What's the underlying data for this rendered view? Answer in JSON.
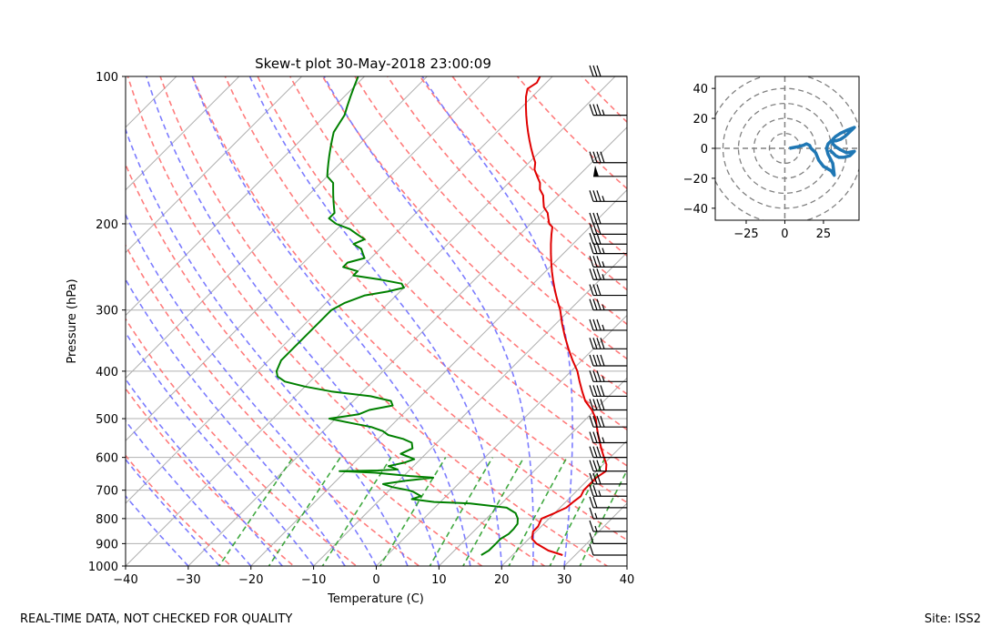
{
  "chart_data": [
    {
      "type": "skew-t",
      "title": "Skew-t plot 30-May-2018 23:00:09",
      "xlabel": "Temperature (C)",
      "ylabel": "Pressure (hPa)",
      "xlim": [
        -40,
        40
      ],
      "ylim_hpa": [
        1000,
        100
      ],
      "x_ticks": [
        -40,
        -30,
        -20,
        -10,
        0,
        10,
        20,
        30,
        40
      ],
      "x_tick_labels": [
        "−40",
        "−30",
        "−20",
        "−10",
        "0",
        "10",
        "20",
        "30",
        "40"
      ],
      "y_ticks": [
        1000,
        900,
        800,
        700,
        600,
        500,
        400,
        300,
        200,
        100
      ],
      "y_tick_labels": [
        "1000",
        "900",
        "800",
        "700",
        "600",
        "500",
        "400",
        "300",
        "200",
        "100"
      ],
      "series": [
        {
          "name": "Temperature",
          "color": "#e00000",
          "points": [
            [
              950,
              28
            ],
            [
              930,
              25
            ],
            [
              900,
              22
            ],
            [
              880,
              20.5
            ],
            [
              850,
              19.5
            ],
            [
              830,
              19.5
            ],
            [
              800,
              18.8
            ],
            [
              780,
              20
            ],
            [
              760,
              21
            ],
            [
              740,
              21.2
            ],
            [
              720,
              21.5
            ],
            [
              700,
              21
            ],
            [
              680,
              21
            ],
            [
              660,
              21
            ],
            [
              640,
              21.5
            ],
            [
              620,
              20.5
            ],
            [
              600,
              19
            ],
            [
              580,
              17.5
            ],
            [
              560,
              16
            ],
            [
              540,
              14.5
            ],
            [
              520,
              13
            ],
            [
              500,
              11.5
            ],
            [
              480,
              9.5
            ],
            [
              460,
              7
            ],
            [
              440,
              5
            ],
            [
              420,
              3
            ],
            [
              400,
              1
            ],
            [
              380,
              -1.5
            ],
            [
              360,
              -4
            ],
            [
              340,
              -6.5
            ],
            [
              320,
              -9
            ],
            [
              300,
              -11.5
            ],
            [
              290,
              -13
            ],
            [
              280,
              -14.5
            ],
            [
              270,
              -16
            ],
            [
              260,
              -17.5
            ],
            [
              250,
              -19
            ],
            [
              240,
              -20.5
            ],
            [
              230,
              -22
            ],
            [
              220,
              -23.5
            ],
            [
              210,
              -25
            ],
            [
              203,
              -26
            ],
            [
              200,
              -27
            ],
            [
              195,
              -28
            ],
            [
              190,
              -29
            ],
            [
              185,
              -30.5
            ],
            [
              180,
              -31.5
            ],
            [
              175,
              -32.5
            ],
            [
              170,
              -34
            ],
            [
              165,
              -35
            ],
            [
              160,
              -36.5
            ],
            [
              155,
              -38
            ],
            [
              150,
              -39
            ],
            [
              145,
              -40.5
            ],
            [
              140,
              -42
            ],
            [
              135,
              -43.5
            ],
            [
              130,
              -45
            ],
            [
              125,
              -46.5
            ],
            [
              120,
              -48
            ],
            [
              115,
              -49.5
            ],
            [
              110,
              -51
            ],
            [
              106,
              -52
            ],
            [
              103,
              -51.5
            ],
            [
              100,
              -52
            ]
          ]
        },
        {
          "name": "Dewpoint",
          "color": "#008000",
          "points": [
            [
              950,
              15
            ],
            [
              930,
              15.5
            ],
            [
              900,
              15.5
            ],
            [
              880,
              15.5
            ],
            [
              860,
              16
            ],
            [
              840,
              16
            ],
            [
              820,
              15.8
            ],
            [
              800,
              15
            ],
            [
              780,
              13.8
            ],
            [
              760,
              11.5
            ],
            [
              745,
              5
            ],
            [
              740,
              -1
            ],
            [
              730,
              -5
            ],
            [
              720,
              -4
            ],
            [
              705,
              -6
            ],
            [
              700,
              -7
            ],
            [
              690,
              -10
            ],
            [
              680,
              -12
            ],
            [
              670,
              -9
            ],
            [
              660,
              -5
            ],
            [
              655,
              -9
            ],
            [
              645,
              -15
            ],
            [
              640,
              -21
            ],
            [
              638,
              -15
            ],
            [
              635,
              -12
            ],
            [
              625,
              -14
            ],
            [
              615,
              -12
            ],
            [
              605,
              -11
            ],
            [
              600,
              -12
            ],
            [
              590,
              -14
            ],
            [
              575,
              -13
            ],
            [
              560,
              -14
            ],
            [
              550,
              -16
            ],
            [
              540,
              -19
            ],
            [
              530,
              -20.5
            ],
            [
              520,
              -23
            ],
            [
              510,
              -27
            ],
            [
              500,
              -31
            ],
            [
              490,
              -27
            ],
            [
              480,
              -26
            ],
            [
              470,
              -23
            ],
            [
              460,
              -24
            ],
            [
              450,
              -28
            ],
            [
              440,
              -35
            ],
            [
              430,
              -40
            ],
            [
              420,
              -44
            ],
            [
              410,
              -46
            ],
            [
              400,
              -47
            ],
            [
              380,
              -48
            ],
            [
              360,
              -48
            ],
            [
              340,
              -48
            ],
            [
              320,
              -48
            ],
            [
              300,
              -48
            ],
            [
              290,
              -47
            ],
            [
              280,
              -45
            ],
            [
              275,
              -42
            ],
            [
              270,
              -40
            ],
            [
              265,
              -41
            ],
            [
              260,
              -45
            ],
            [
              255,
              -50
            ],
            [
              250,
              -50
            ],
            [
              245,
              -53
            ],
            [
              240,
              -53
            ],
            [
              235,
              -51
            ],
            [
              230,
              -52
            ],
            [
              225,
              -53
            ],
            [
              220,
              -55
            ],
            [
              215,
              -54
            ],
            [
              210,
              -56
            ],
            [
              205,
              -58
            ],
            [
              200,
              -61
            ],
            [
              195,
              -63
            ],
            [
              190,
              -63
            ],
            [
              185,
              -64
            ],
            [
              180,
              -65
            ],
            [
              175,
              -66
            ],
            [
              170,
              -67
            ],
            [
              165,
              -68
            ],
            [
              160,
              -70
            ],
            [
              155,
              -71
            ],
            [
              150,
              -72
            ],
            [
              145,
              -73
            ],
            [
              140,
              -74
            ],
            [
              135,
              -75
            ],
            [
              130,
              -76
            ],
            [
              125,
              -76.5
            ],
            [
              120,
              -77
            ],
            [
              115,
              -78
            ],
            [
              110,
              -79
            ],
            [
              105,
              -80
            ],
            [
              100,
              -81
            ]
          ]
        }
      ],
      "isotherms_c": [
        -130,
        -120,
        -110,
        -100,
        -90,
        -80,
        -70,
        -60,
        -50,
        -40,
        -30,
        -20,
        -10,
        0,
        10,
        20,
        30,
        40
      ],
      "dry_adiabats_theta_k": [
        250,
        260,
        270,
        280,
        290,
        300,
        310,
        320,
        330,
        340,
        350,
        360,
        370,
        380,
        390,
        400,
        420,
        440
      ],
      "moist_adiabats_start_c_at_1000": [
        -30,
        -25,
        -20,
        -15,
        -10,
        -5,
        0,
        5,
        10,
        15,
        20,
        25,
        30
      ],
      "mixing_ratio_lines_gkg": [
        0.5,
        1,
        2,
        4,
        7,
        10,
        16,
        24,
        32
      ],
      "wind_barbs": [
        [
          100,
          30
        ],
        [
          120,
          35
        ],
        [
          150,
          40
        ],
        [
          160,
          50
        ],
        [
          180,
          35
        ],
        [
          200,
          30
        ],
        [
          210,
          30
        ],
        [
          220,
          30
        ],
        [
          230,
          35
        ],
        [
          245,
          35
        ],
        [
          260,
          35
        ],
        [
          280,
          30
        ],
        [
          300,
          35
        ],
        [
          330,
          35
        ],
        [
          360,
          40
        ],
        [
          390,
          40
        ],
        [
          420,
          35
        ],
        [
          450,
          40
        ],
        [
          480,
          40
        ],
        [
          520,
          40
        ],
        [
          560,
          35
        ],
        [
          600,
          30
        ],
        [
          640,
          30
        ],
        [
          680,
          30
        ],
        [
          720,
          25
        ],
        [
          760,
          20
        ],
        [
          800,
          15
        ],
        [
          850,
          15
        ],
        [
          900,
          10
        ],
        [
          950,
          10
        ]
      ]
    },
    {
      "type": "hodograph",
      "xlim": [
        -45,
        48
      ],
      "ylim": [
        -48,
        48
      ],
      "x_ticks": [
        -25,
        0,
        25
      ],
      "x_tick_labels": [
        "−25",
        "0",
        "25"
      ],
      "y_ticks": [
        -40,
        -20,
        0,
        20,
        40
      ],
      "y_tick_labels": [
        "−40",
        "−20",
        "0",
        "20",
        "40"
      ],
      "rings": [
        10,
        20,
        30,
        40,
        50
      ],
      "color": "#1f77b4",
      "uv": [
        [
          3,
          0
        ],
        [
          8,
          1
        ],
        [
          12,
          2
        ],
        [
          14,
          3
        ],
        [
          16,
          2
        ],
        [
          17,
          0
        ],
        [
          20,
          -3
        ],
        [
          22,
          -8
        ],
        [
          25,
          -12
        ],
        [
          30,
          -15
        ],
        [
          32,
          -18
        ],
        [
          31,
          -10
        ],
        [
          28,
          -4
        ],
        [
          27,
          0
        ],
        [
          28,
          3
        ],
        [
          30,
          5
        ],
        [
          33,
          5
        ],
        [
          36,
          6
        ],
        [
          39,
          8
        ],
        [
          42,
          11
        ],
        [
          45,
          14
        ],
        [
          40,
          12
        ],
        [
          36,
          10
        ],
        [
          33,
          8
        ],
        [
          31,
          6
        ],
        [
          31,
          3
        ],
        [
          33,
          1
        ],
        [
          36,
          -1
        ],
        [
          40,
          -3
        ],
        [
          45,
          -2
        ],
        [
          42,
          -5
        ],
        [
          38,
          -6
        ],
        [
          35,
          -6
        ],
        [
          33,
          -5
        ],
        [
          31,
          -3
        ],
        [
          29,
          -1
        ]
      ]
    }
  ],
  "footer": {
    "left": "REAL-TIME DATA, NOT CHECKED FOR QUALITY",
    "right": "Site: ISS2"
  }
}
